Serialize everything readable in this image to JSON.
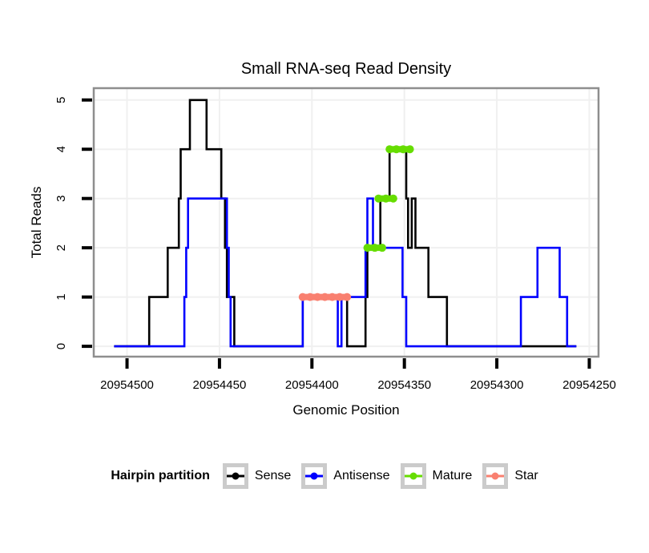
{
  "title": "Small RNA-seq Read Density",
  "legend": {
    "title": "Hairpin partition",
    "entries": [
      {
        "label": "Sense",
        "color": "#000000"
      },
      {
        "label": "Antisense",
        "color": "#0000FF"
      },
      {
        "label": "Mature",
        "color": "#66DD00"
      },
      {
        "label": "Star",
        "color": "#F98070"
      }
    ]
  },
  "chart_data": {
    "type": "line",
    "subtype": "step-density",
    "title": "Small RNA-seq Read Density",
    "xlabel": "Genomic Position",
    "ylabel": "Total Reads",
    "x_reversed": true,
    "xlim": [
      20954518,
      20954245
    ],
    "ylim": [
      0,
      5
    ],
    "x_ticks": [
      20954500,
      20954450,
      20954400,
      20954350,
      20954300,
      20954250
    ],
    "y_ticks": [
      0,
      1,
      2,
      3,
      4,
      5
    ],
    "grid": true,
    "legend_position": "bottom",
    "colors": {
      "panel_border": "#8e8e8e",
      "grid_line": "#f0f0f0",
      "tick": "#000000"
    },
    "series": [
      {
        "name": "Sense",
        "color": "#000000",
        "style": "step",
        "segments": [
          [
            20954507,
            20954488,
            0
          ],
          [
            20954488,
            20954478,
            1
          ],
          [
            20954478,
            20954472,
            2
          ],
          [
            20954472,
            20954471,
            3
          ],
          [
            20954471,
            20954466,
            4
          ],
          [
            20954466,
            20954457,
            5
          ],
          [
            20954457,
            20954449,
            4
          ],
          [
            20954449,
            20954447,
            3
          ],
          [
            20954447,
            20954446,
            2
          ],
          [
            20954446,
            20954442,
            1
          ],
          [
            20954442,
            20954405,
            0
          ],
          [
            20954405,
            20954381,
            1
          ],
          [
            20954381,
            20954371,
            0
          ],
          [
            20954371,
            20954370,
            1
          ],
          [
            20954370,
            20954363,
            2
          ],
          [
            20954363,
            20954358,
            3
          ],
          [
            20954358,
            20954349,
            4
          ],
          [
            20954349,
            20954348,
            3
          ],
          [
            20954348,
            20954346,
            2
          ],
          [
            20954346,
            20954344,
            3
          ],
          [
            20954344,
            20954337,
            2
          ],
          [
            20954337,
            20954327,
            1
          ],
          [
            20954327,
            20954257,
            0
          ]
        ]
      },
      {
        "name": "Antisense",
        "color": "#0000FF",
        "style": "step",
        "segments": [
          [
            20954507,
            20954469,
            0
          ],
          [
            20954469,
            20954468,
            1
          ],
          [
            20954468,
            20954467,
            2
          ],
          [
            20954467,
            20954446,
            3
          ],
          [
            20954446,
            20954445,
            2
          ],
          [
            20954445,
            20954444,
            1
          ],
          [
            20954444,
            20954405,
            0
          ],
          [
            20954405,
            20954386,
            1
          ],
          [
            20954386,
            20954384,
            0
          ],
          [
            20954384,
            20954371,
            1
          ],
          [
            20954371,
            20954370,
            2
          ],
          [
            20954370,
            20954367,
            3
          ],
          [
            20954367,
            20954351,
            2
          ],
          [
            20954351,
            20954349,
            1
          ],
          [
            20954349,
            20954287,
            0
          ],
          [
            20954287,
            20954278,
            1
          ],
          [
            20954278,
            20954266,
            2
          ],
          [
            20954266,
            20954262,
            1
          ],
          [
            20954262,
            20954257,
            0
          ]
        ]
      },
      {
        "name": "Star",
        "color": "#F98070",
        "style": "thick-marked-segment",
        "segments": [
          [
            20954405,
            20954381,
            1
          ]
        ]
      },
      {
        "name": "Mature",
        "color": "#66DD00",
        "style": "thick-marked-segment",
        "segments": [
          [
            20954370,
            20954362,
            2
          ],
          [
            20954364,
            20954356,
            3
          ],
          [
            20954358,
            20954347,
            4
          ]
        ]
      }
    ]
  }
}
